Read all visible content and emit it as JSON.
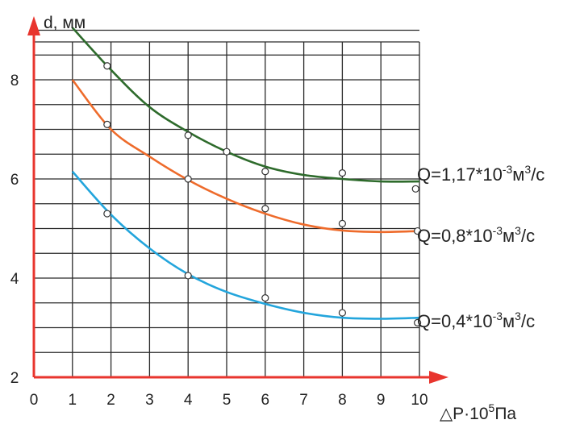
{
  "chart_data": {
    "type": "line",
    "xlabel": "△P·10⁵Па",
    "ylabel": "d, мм",
    "x_axis": {
      "range": [
        0,
        10
      ],
      "tick_values": [
        0,
        1,
        2,
        3,
        4,
        5,
        6,
        7,
        8,
        9,
        10
      ],
      "tick_labels": [
        "0",
        "1",
        "2",
        "3",
        "4",
        "5",
        "6",
        "7",
        "8",
        "9",
        "10"
      ],
      "label_parts": {
        "main": "△P·10",
        "sup": "5",
        "tail": "Па"
      }
    },
    "y_axis": {
      "range": [
        2,
        9
      ],
      "tick_values": [
        2,
        4,
        6,
        8
      ],
      "tick_labels": [
        "2",
        "4",
        "6",
        "8"
      ]
    },
    "grid": true,
    "axis_color": "#e8352e",
    "series": [
      {
        "name": "Q=1,17*10-3м3/с",
        "label_parts": {
          "a": "Q=1,17*10",
          "e": "-3",
          "m": "м",
          "e2": "3",
          "tail": "/с"
        },
        "color": "#2e6b2c",
        "curve": [
          [
            1,
            9.05
          ],
          [
            2,
            8.2
          ],
          [
            3,
            7.45
          ],
          [
            4,
            6.95
          ],
          [
            5,
            6.55
          ],
          [
            6,
            6.25
          ],
          [
            7,
            6.08
          ],
          [
            8,
            6.0
          ],
          [
            9,
            5.95
          ],
          [
            10,
            5.95
          ]
        ],
        "markers": [
          [
            1.9,
            8.28
          ],
          [
            4,
            6.88
          ],
          [
            5,
            6.55
          ],
          [
            6,
            6.15
          ],
          [
            8,
            6.12
          ],
          [
            9.9,
            5.8
          ]
        ]
      },
      {
        "name": "Q=0,8*10-3м3/с",
        "label_parts": {
          "a": "Q=0,8*10",
          "e": "-3",
          "m": "м",
          "e2": "3",
          "tail": "/с"
        },
        "color": "#ee6b2b",
        "curve": [
          [
            1,
            8.0
          ],
          [
            2,
            7.0
          ],
          [
            3,
            6.45
          ],
          [
            4,
            5.98
          ],
          [
            5,
            5.6
          ],
          [
            6,
            5.3
          ],
          [
            7,
            5.08
          ],
          [
            8,
            4.96
          ],
          [
            9,
            4.93
          ],
          [
            10,
            4.95
          ]
        ],
        "markers": [
          [
            1.9,
            7.1
          ],
          [
            4,
            6.0
          ],
          [
            6,
            5.4
          ],
          [
            8,
            5.1
          ],
          [
            9.95,
            4.95
          ]
        ]
      },
      {
        "name": "Q=0,4*10-3м3/с",
        "label_parts": {
          "a": "Q=0,4*10",
          "e": "-3",
          "m": "м",
          "e2": "3",
          "tail": "/с"
        },
        "color": "#23a5dc",
        "curve": [
          [
            1,
            6.15
          ],
          [
            2,
            5.28
          ],
          [
            3,
            4.6
          ],
          [
            4,
            4.08
          ],
          [
            5,
            3.72
          ],
          [
            6,
            3.48
          ],
          [
            7,
            3.3
          ],
          [
            8,
            3.2
          ],
          [
            9,
            3.18
          ],
          [
            10,
            3.2
          ]
        ],
        "markers": [
          [
            1.9,
            5.3
          ],
          [
            4,
            4.05
          ],
          [
            6,
            3.6
          ],
          [
            8,
            3.3
          ],
          [
            9.95,
            3.1
          ]
        ]
      }
    ]
  }
}
